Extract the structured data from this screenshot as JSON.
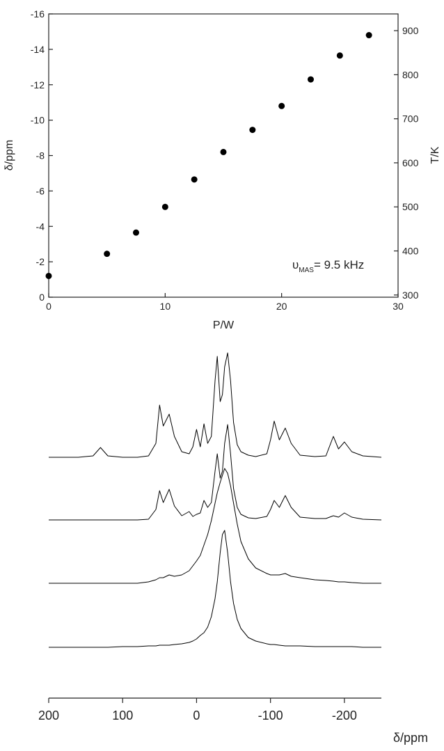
{
  "chart_data": [
    {
      "type": "scatter",
      "xlabel": "P/W",
      "ylabel": "δ/ppm",
      "y2label": "T/K",
      "x": [
        0,
        5,
        7.5,
        10,
        12.5,
        15,
        17.5,
        20,
        22.5,
        25,
        27.5
      ],
      "values": [
        -1.2,
        -2.45,
        -3.65,
        -5.1,
        -6.65,
        -8.2,
        -9.45,
        -10.8,
        -12.3,
        -13.65,
        -14.8
      ],
      "color": "#000000",
      "xlim": [
        0,
        30
      ],
      "xticks": [
        0,
        10,
        20,
        30
      ],
      "ylim": [
        0,
        -16
      ],
      "yticks": [
        0,
        -2,
        -4,
        -6,
        -8,
        -10,
        -12,
        -14,
        -16
      ],
      "y2lim": [
        295,
        938
      ],
      "y2ticks": [
        300,
        400,
        500,
        600,
        700,
        800,
        900
      ],
      "annotation": {
        "symbol": "υ",
        "subscript": "MAS",
        "text": "= 9.5 kHz"
      }
    },
    {
      "type": "line",
      "xlabel": "δ/ppm",
      "x": [
        200,
        180,
        160,
        140,
        130,
        120,
        100,
        80,
        65,
        55,
        50,
        45,
        37,
        30,
        20,
        10,
        5,
        0,
        -5,
        -10,
        -15,
        -20,
        -25,
        -28,
        -32,
        -35,
        -38,
        -42,
        -46,
        -50,
        -55,
        -60,
        -70,
        -80,
        -95,
        -100,
        -105,
        -112,
        -120,
        -128,
        -140,
        -160,
        -175,
        -185,
        -192,
        -200,
        -210,
        -225,
        -250
      ],
      "xlim": [
        200,
        -250
      ],
      "xticks": [
        200,
        100,
        0,
        -100,
        -200
      ],
      "series": [
        {
          "color": "#000000",
          "values": [
            0,
            0,
            0,
            2,
            14,
            2,
            0,
            0,
            2,
            20,
            75,
            45,
            62,
            30,
            8,
            5,
            15,
            40,
            15,
            48,
            20,
            30,
            110,
            145,
            80,
            90,
            130,
            150,
            110,
            50,
            18,
            8,
            3,
            1,
            5,
            25,
            52,
            25,
            42,
            20,
            3,
            1,
            2,
            30,
            12,
            22,
            8,
            2,
            0
          ]
        },
        {
          "color": "#000000",
          "values": [
            0,
            0,
            0,
            0,
            0,
            0,
            0,
            0,
            1,
            15,
            42,
            25,
            44,
            20,
            6,
            12,
            5,
            8,
            10,
            28,
            18,
            25,
            70,
            95,
            60,
            70,
            110,
            137,
            95,
            45,
            18,
            8,
            3,
            2,
            5,
            15,
            28,
            18,
            35,
            18,
            4,
            2,
            2,
            6,
            4,
            10,
            4,
            1,
            0
          ]
        },
        {
          "color": "#000000",
          "values": [
            0,
            0,
            0,
            0,
            0,
            0,
            0,
            0,
            2,
            5,
            8,
            8,
            12,
            10,
            12,
            18,
            25,
            32,
            40,
            55,
            70,
            90,
            115,
            130,
            145,
            155,
            165,
            158,
            140,
            115,
            85,
            60,
            35,
            22,
            14,
            12,
            12,
            12,
            14,
            10,
            8,
            5,
            4,
            3,
            2,
            2,
            1,
            0,
            0
          ]
        },
        {
          "color": "#000000",
          "values": [
            0,
            0,
            0,
            0,
            0,
            0,
            1,
            1,
            2,
            2,
            3,
            3,
            3,
            4,
            5,
            7,
            9,
            12,
            17,
            21,
            29,
            44,
            70,
            94,
            136,
            162,
            168,
            136,
            94,
            63,
            40,
            27,
            14,
            9,
            5,
            4,
            4,
            3,
            2,
            2,
            2,
            1,
            1,
            1,
            1,
            1,
            1,
            0,
            0
          ]
        }
      ]
    }
  ]
}
